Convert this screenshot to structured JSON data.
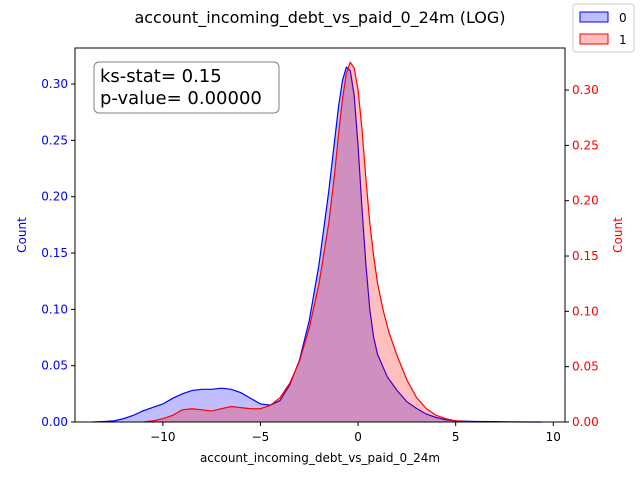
{
  "chart_data": {
    "type": "area",
    "title": "account_incoming_debt_vs_paid_0_24m (LOG)",
    "xlabel": "account_incoming_debt_vs_paid_0_24m",
    "ylabel_left": "Count",
    "ylabel_right": "Count",
    "xlim": [
      -14.5,
      10.6
    ],
    "ylim_left": [
      0,
      0.332
    ],
    "ylim_right": [
      0,
      0.338
    ],
    "x_ticks": [
      -10,
      -5,
      0,
      5,
      10
    ],
    "x_tick_labels": [
      "−10",
      "−5",
      "0",
      "5",
      "10"
    ],
    "y_left_ticks": [
      0.0,
      0.05,
      0.1,
      0.15,
      0.2,
      0.25,
      0.3
    ],
    "y_left_tick_labels": [
      "0.00",
      "0.05",
      "0.10",
      "0.15",
      "0.20",
      "0.25",
      "0.30"
    ],
    "y_right_ticks": [
      0.0,
      0.05,
      0.1,
      0.15,
      0.2,
      0.25,
      0.3
    ],
    "y_right_tick_labels": [
      "0.00",
      "0.05",
      "0.10",
      "0.15",
      "0.20",
      "0.25",
      "0.30"
    ],
    "grid": false,
    "legend_position": "top-right",
    "colors": {
      "left_axis": "#0000ff",
      "right_axis": "#ff0000"
    },
    "annotation": {
      "line1": "ks-stat= 0.15",
      "line2": "p-value= 0.00000",
      "position": "top-left"
    },
    "series": [
      {
        "name": "0",
        "axis": "left",
        "line_color": "#0000ff",
        "fill_color": "#0000ff",
        "fill_opacity": 0.25,
        "x": [
          -13.6,
          -13.0,
          -12.5,
          -12.0,
          -11.5,
          -11.0,
          -10.5,
          -10.0,
          -9.5,
          -9.0,
          -8.5,
          -8.0,
          -7.5,
          -7.0,
          -6.5,
          -6.0,
          -5.5,
          -5.0,
          -4.5,
          -4.0,
          -3.5,
          -3.0,
          -2.5,
          -2.0,
          -1.5,
          -1.2,
          -1.0,
          -0.8,
          -0.6,
          -0.4,
          -0.2,
          0.0,
          0.2,
          0.4,
          0.6,
          0.8,
          1.0,
          1.5,
          2.0,
          2.5,
          3.0,
          3.5,
          4.0,
          4.5,
          5.0,
          6.0,
          7.0,
          8.0,
          9.0,
          9.4
        ],
        "y": [
          0.0,
          0.0005,
          0.001,
          0.003,
          0.006,
          0.01,
          0.013,
          0.016,
          0.021,
          0.025,
          0.028,
          0.029,
          0.029,
          0.03,
          0.029,
          0.026,
          0.021,
          0.016,
          0.015,
          0.019,
          0.033,
          0.055,
          0.09,
          0.14,
          0.205,
          0.25,
          0.28,
          0.303,
          0.315,
          0.312,
          0.29,
          0.245,
          0.19,
          0.14,
          0.1,
          0.075,
          0.06,
          0.04,
          0.028,
          0.018,
          0.012,
          0.007,
          0.004,
          0.002,
          0.001,
          0.0005,
          0.0003,
          0.0001,
          0.0,
          0.0
        ]
      },
      {
        "name": "1",
        "axis": "right",
        "line_color": "#ff0000",
        "fill_color": "#ff0000",
        "fill_opacity": 0.25,
        "x": [
          -11.0,
          -10.5,
          -10.0,
          -9.5,
          -9.0,
          -8.5,
          -8.0,
          -7.5,
          -7.0,
          -6.5,
          -6.0,
          -5.5,
          -5.0,
          -4.5,
          -4.0,
          -3.5,
          -3.0,
          -2.5,
          -2.0,
          -1.5,
          -1.2,
          -1.0,
          -0.8,
          -0.6,
          -0.4,
          -0.2,
          0.0,
          0.2,
          0.4,
          0.6,
          0.8,
          1.0,
          1.3,
          1.6,
          2.0,
          2.5,
          3.0,
          3.5,
          4.0,
          4.5,
          5.0,
          5.5,
          6.0
        ],
        "y": [
          0.0,
          0.001,
          0.003,
          0.006,
          0.011,
          0.012,
          0.011,
          0.01,
          0.012,
          0.014,
          0.013,
          0.012,
          0.012,
          0.015,
          0.022,
          0.035,
          0.055,
          0.085,
          0.125,
          0.18,
          0.225,
          0.26,
          0.292,
          0.315,
          0.325,
          0.32,
          0.3,
          0.265,
          0.22,
          0.18,
          0.15,
          0.125,
          0.1,
          0.08,
          0.06,
          0.038,
          0.022,
          0.012,
          0.006,
          0.003,
          0.001,
          0.0005,
          0.0
        ]
      }
    ]
  }
}
